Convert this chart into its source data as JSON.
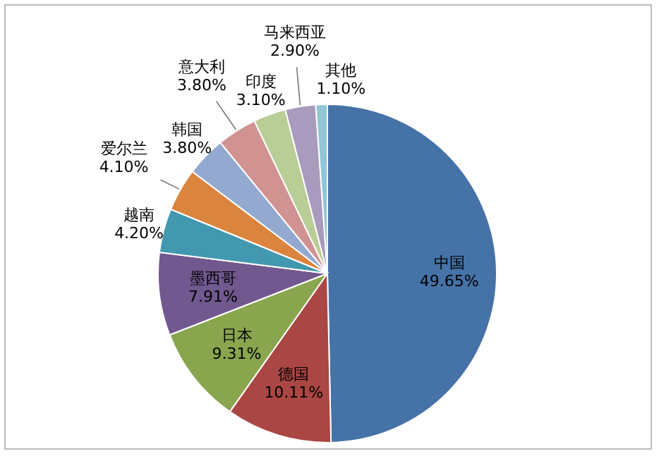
{
  "chart_data": {
    "type": "pie",
    "categories": [
      "中国",
      "德国",
      "日本",
      "墨西哥",
      "越南",
      "爱尔兰",
      "韩国",
      "意大利",
      "印度",
      "马来西亚",
      "其他"
    ],
    "values": [
      49.65,
      10.11,
      9.31,
      7.91,
      4.2,
      4.1,
      3.8,
      3.8,
      3.1,
      2.9,
      1.1
    ],
    "value_labels": [
      "49.65%",
      "10.11%",
      "9.31%",
      "7.91%",
      "4.20%",
      "4.10%",
      "3.80%",
      "3.80%",
      "3.10%",
      "2.90%",
      "1.10%"
    ],
    "colors": [
      "#4572a7",
      "#aa4643",
      "#89a54e",
      "#71588f",
      "#4198af",
      "#db843d",
      "#93a9cf",
      "#d19392",
      "#b9cd96",
      "#a99bbd",
      "#92c5d6"
    ],
    "legend": false
  }
}
